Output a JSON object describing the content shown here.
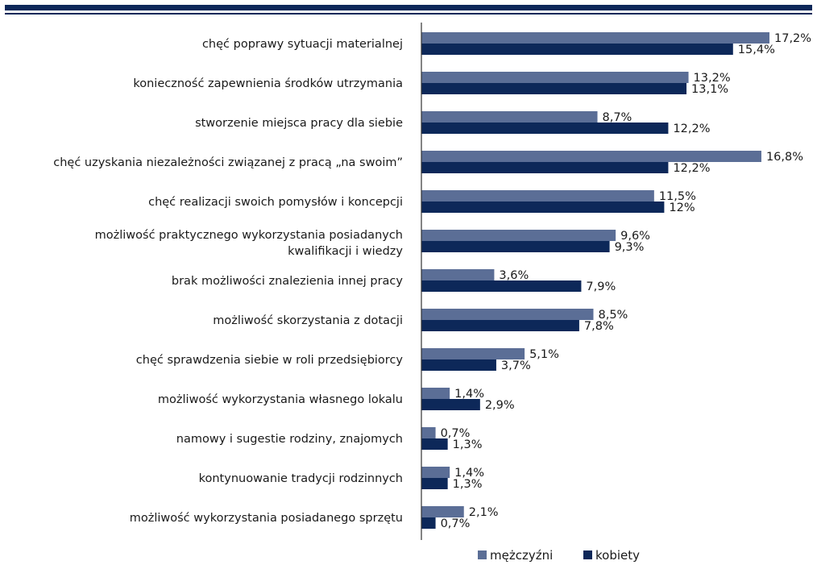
{
  "colors": {
    "header_rule": "#0d2859",
    "men": "#5b6e96",
    "women": "#0d2859",
    "axis": "#333333"
  },
  "chart_data": {
    "type": "bar",
    "orientation": "horizontal",
    "categories": [
      [
        "chęć poprawy sytuacji materialnej"
      ],
      [
        "konieczność zapewnienia środków utrzymania"
      ],
      [
        "stworzenie miejsca pracy dla siebie"
      ],
      [
        "chęć uzyskania niezależności związanej z pracą „na swoim”"
      ],
      [
        "chęć realizacji swoich pomysłów i koncepcji"
      ],
      [
        "możliwość praktycznego wykorzystania posiadanych",
        "kwalifikacji i wiedzy"
      ],
      [
        "brak możliwości znalezienia innej pracy"
      ],
      [
        "możliwość skorzystania z dotacji"
      ],
      [
        "chęć sprawdzenia siebie w roli przedsiębiorcy"
      ],
      [
        "możliwość wykorzystania własnego lokalu"
      ],
      [
        "namowy i sugestie rodziny, znajomych"
      ],
      [
        "kontynuowanie tradycji rodzinnych"
      ],
      [
        "możliwość wykorzystania posiadanego sprzętu"
      ]
    ],
    "series": [
      {
        "name": "mężczyźni",
        "values": [
          17.2,
          13.2,
          8.7,
          16.8,
          11.5,
          9.6,
          3.6,
          8.5,
          5.1,
          1.4,
          0.7,
          1.4,
          2.1
        ],
        "labels": [
          "17,2%",
          "13,2%",
          "8,7%",
          "16,8%",
          "11,5%",
          "9,6%",
          "3,6%",
          "8,5%",
          "5,1%",
          "1,4%",
          "0,7%",
          "1,4%",
          "2,1%"
        ]
      },
      {
        "name": "kobiety",
        "values": [
          15.4,
          13.1,
          12.2,
          12.2,
          12,
          9.3,
          7.9,
          7.8,
          3.7,
          2.9,
          1.3,
          1.3,
          0.7
        ],
        "labels": [
          "15,4%",
          "13,1%",
          "12,2%",
          "12,2%",
          "12%",
          "9,3%",
          "7,9%",
          "7,8%",
          "3,7%",
          "2,9%",
          "1,3%",
          "1,3%",
          "0,7%"
        ]
      }
    ],
    "xlim": [
      0,
      17.2
    ],
    "grid": false,
    "legend_position": "bottom"
  }
}
